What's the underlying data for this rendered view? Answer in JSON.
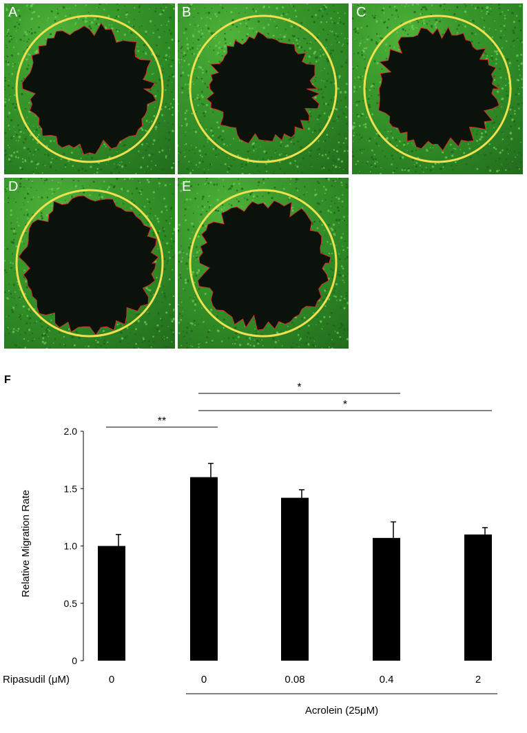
{
  "panels": [
    {
      "letter": "A"
    },
    {
      "letter": "B"
    },
    {
      "letter": "C"
    },
    {
      "letter": "D"
    },
    {
      "letter": "E"
    }
  ],
  "colors": {
    "circle": "#f0e050",
    "edge": "#d43030",
    "cells": "#4cb43c",
    "bars": "#000000"
  },
  "chart_data": {
    "type": "bar",
    "panel_label": "F",
    "ylabel": "Relative Migration Rate",
    "ylim": [
      0,
      2.0
    ],
    "yticks": [
      "0",
      "0.5",
      "1.0",
      "1.5",
      "2.0"
    ],
    "ytick_values": [
      0,
      0.5,
      1.0,
      1.5,
      2.0
    ],
    "row_label": "Ripasudil (μM)",
    "categories": [
      "0",
      "0",
      "0.08",
      "0.4",
      "2"
    ],
    "values": [
      1.0,
      1.6,
      1.42,
      1.07,
      1.1
    ],
    "errors": [
      0.1,
      0.12,
      0.07,
      0.14,
      0.06
    ],
    "group_label": "Acrolein (25μM)",
    "significance": [
      {
        "from": 0,
        "to": 1,
        "label": "**"
      },
      {
        "from": 1,
        "to": 3,
        "label": "*"
      },
      {
        "from": 1,
        "to": 4,
        "label": "*"
      }
    ]
  }
}
